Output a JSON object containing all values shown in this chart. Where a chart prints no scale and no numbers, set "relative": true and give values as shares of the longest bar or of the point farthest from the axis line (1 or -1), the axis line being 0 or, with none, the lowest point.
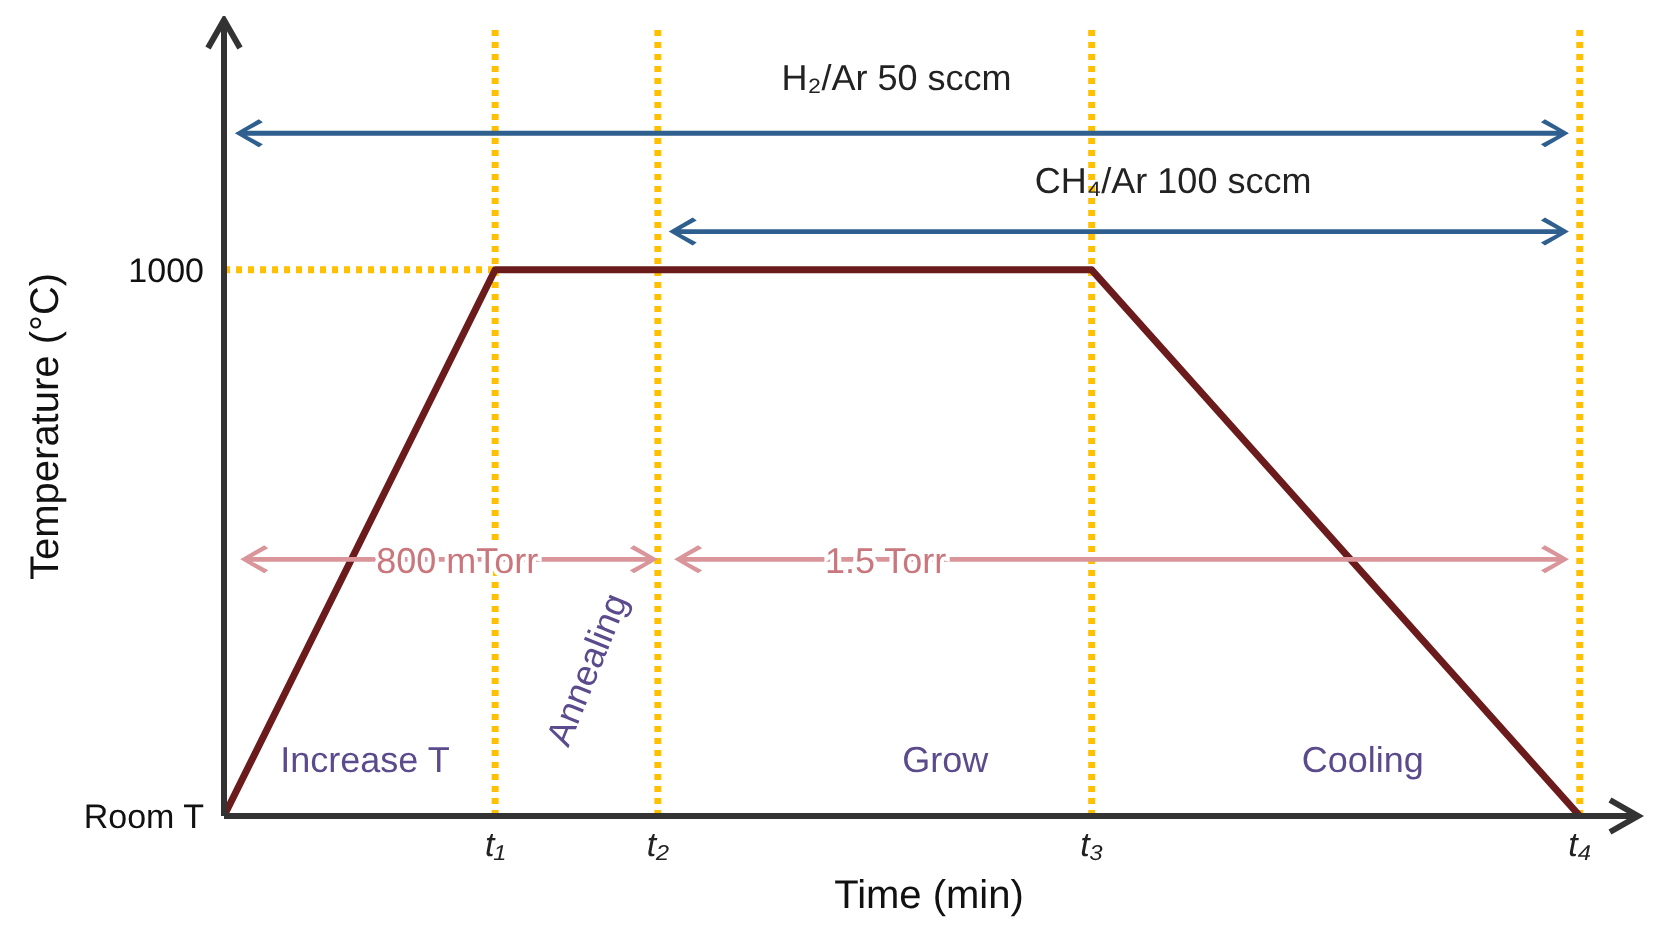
{
  "chart_data": {
    "type": "line",
    "xlabel": "Time (min)",
    "ylabel": "Temperature (°C)",
    "categories": [
      null,
      null,
      null,
      null,
      null,
      "t₁",
      null,
      null,
      "t₂",
      null,
      null,
      null,
      null,
      null,
      null,
      null,
      "t₃",
      null,
      null,
      null,
      null,
      null,
      null,
      null,
      null,
      "t₄",
      null
    ],
    "series": [
      {
        "color": "#6b1b1b",
        "values": [
          0,
          null,
          null,
          null,
          null,
          1,
          null,
          null,
          1,
          null,
          null,
          null,
          null,
          null,
          null,
          null,
          1,
          null,
          null,
          null,
          null,
          null,
          null,
          null,
          null,
          0,
          null
        ]
      }
    ],
    "relative": true,
    "ref_lines": [
      {
        "axis": "x",
        "value": "t₁",
        "color": "#ffc000",
        "line_style": "dotted"
      },
      {
        "axis": "x",
        "value": "t₂",
        "color": "#ffc000",
        "line_style": "dotted"
      },
      {
        "axis": "x",
        "value": "t₃",
        "color": "#ffc000",
        "line_style": "dotted"
      },
      {
        "axis": "x",
        "value": "t₄",
        "color": "#ffc000",
        "line_style": "dotted"
      },
      {
        "axis": "y",
        "value": 1,
        "color": "#ffc000",
        "line_style": "dotted"
      }
    ],
    "annotations": [
      "H₂/Ar 50 sccm",
      "CH₄/Ar 100 sccm",
      "800 mTorr",
      "1.5 Torr",
      "Increase T",
      "Annealing",
      "Grow",
      "Cooling",
      "Room T",
      "1000"
    ],
    "marker": "none",
    "line_style": "solid"
  }
}
